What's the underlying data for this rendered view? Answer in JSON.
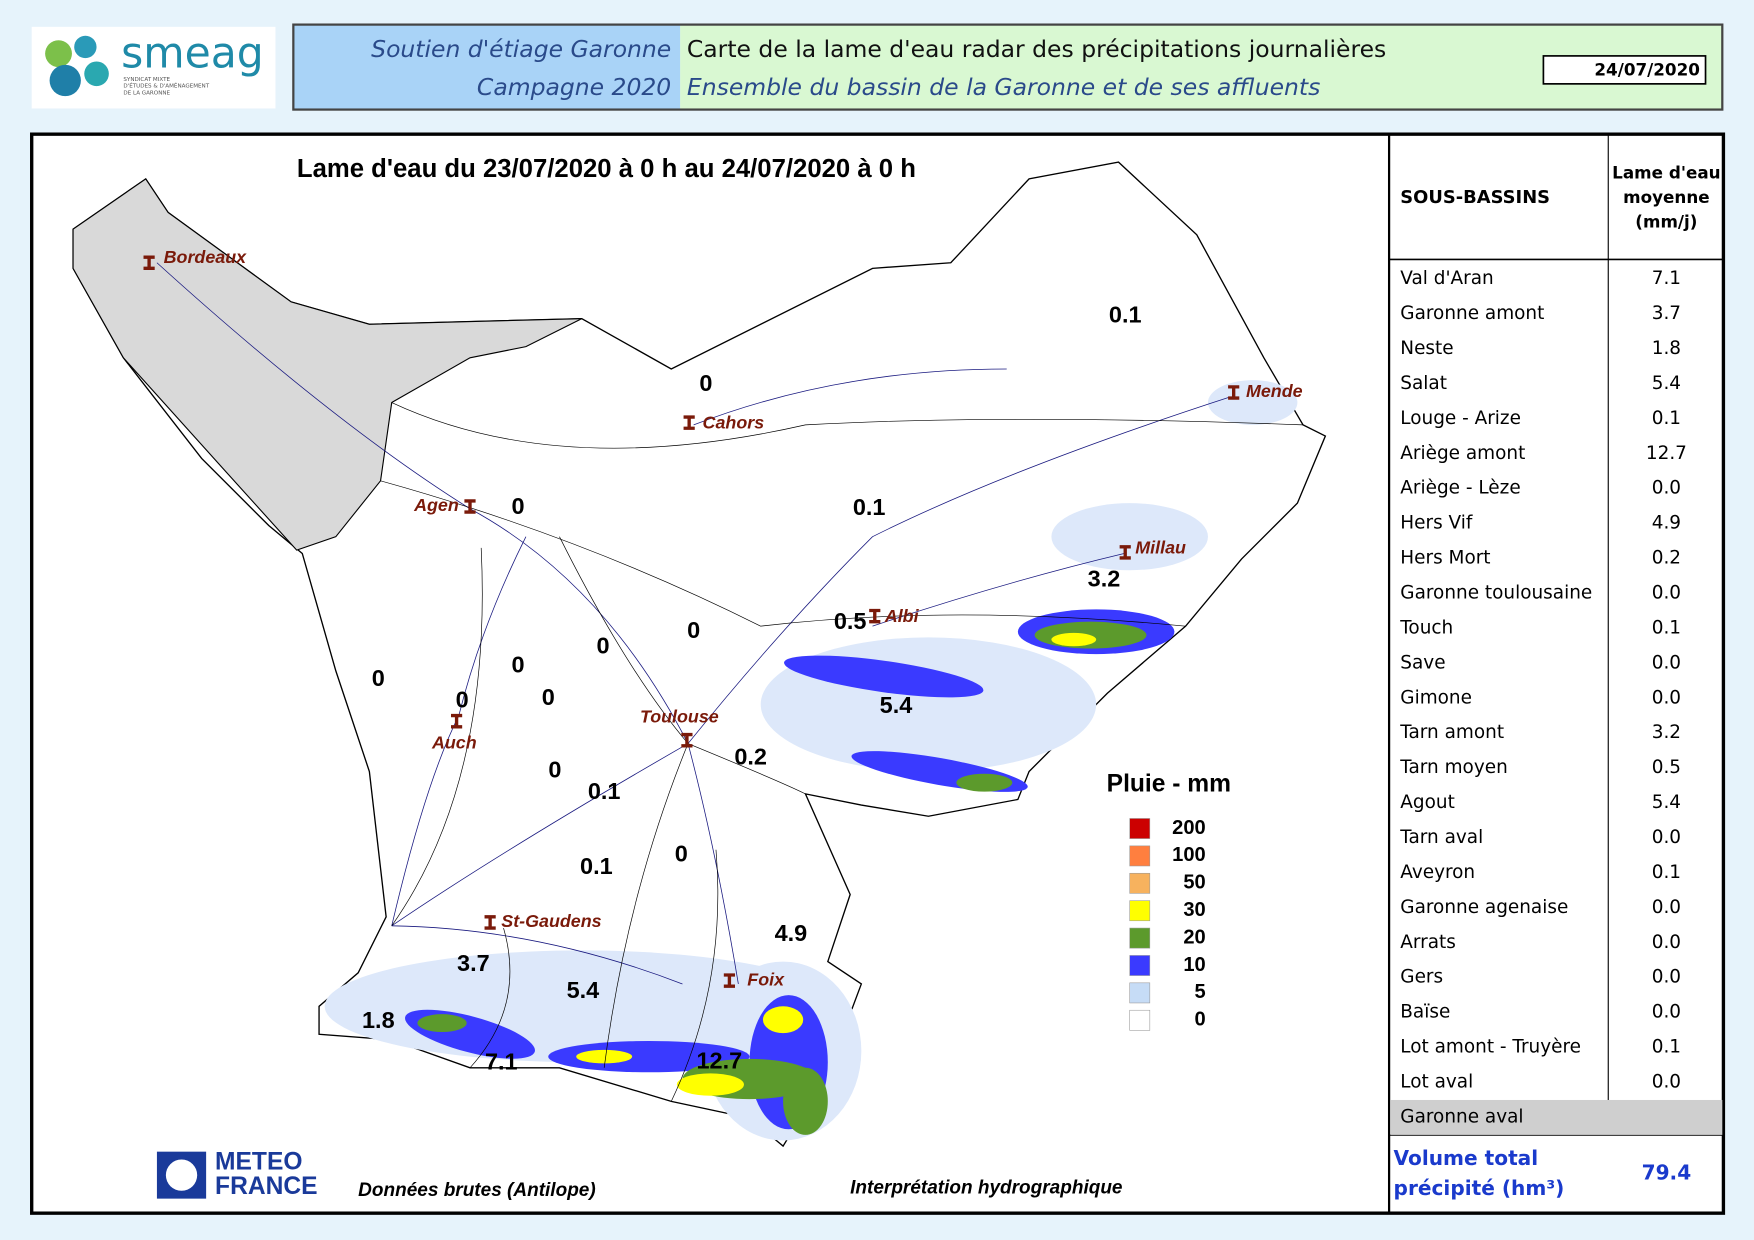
{
  "header": {
    "logo": "smeag",
    "logo_sub": [
      "SYNDICAT MIXTE",
      "D'ÉTUDES & D'AMÉNAGEMENT",
      "DE LA GARONNE"
    ],
    "left_line1": "Soutien d'étiage Garonne",
    "left_line2": "Campagne 2020",
    "right_line1": "Carte de la lame d'eau radar des précipitations journalières",
    "right_line2": "Ensemble du bassin de la Garonne et de ses affluents",
    "date": "24/07/2020"
  },
  "map": {
    "title": "Lame d'eau du 23/07/2020 à 0 h au 24/07/2020 à 0 h",
    "cities": [
      "Bordeaux",
      "Cahors",
      "Mende",
      "Agen",
      "Millau",
      "Albi",
      "Toulouse",
      "Auch",
      "St-Gaudens",
      "Foix"
    ],
    "basin_labels": [
      "0.1",
      "0",
      "0",
      "0.1",
      "3.2",
      "0.5",
      "0",
      "0",
      "0",
      "0",
      "0",
      "0",
      "5.4",
      "0.2",
      "0",
      "0.1",
      "0",
      "0.1",
      "4.9",
      "3.7",
      "5.4",
      "1.8",
      "7.1",
      "12.7"
    ],
    "legend": {
      "title": "Pluie - mm",
      "items": [
        {
          "label": "200",
          "color": "#cc0000"
        },
        {
          "label": "100",
          "color": "#ff7f3f"
        },
        {
          "label": "50",
          "color": "#f7b25e"
        },
        {
          "label": "30",
          "color": "#ffff00"
        },
        {
          "label": "20",
          "color": "#5c9a2c"
        },
        {
          "label": "10",
          "color": "#3a3aff"
        },
        {
          "label": "5",
          "color": "#c6dcf6"
        },
        {
          "label": "0",
          "color": "#ffffff"
        }
      ]
    },
    "logo_meteo": [
      "METEO",
      "FRANCE"
    ],
    "source": "Données brutes (Antilope)",
    "interpretation": "Interprétation hydrographique"
  },
  "table": {
    "col1": "SOUS-BASSINS",
    "col2": [
      "Lame d'eau",
      "moyenne",
      "(mm/j)"
    ],
    "rows": [
      [
        "Val d'Aran",
        "7.1"
      ],
      [
        "Garonne amont",
        "3.7"
      ],
      [
        "Neste",
        "1.8"
      ],
      [
        "Salat",
        "5.4"
      ],
      [
        "Louge - Arize",
        "0.1"
      ],
      [
        "Ariège amont",
        "12.7"
      ],
      [
        "Ariège - Lèze",
        "0.0"
      ],
      [
        "Hers Vif",
        "4.9"
      ],
      [
        "Hers Mort",
        "0.2"
      ],
      [
        "Garonne toulousaine",
        "0.0"
      ],
      [
        "Touch",
        "0.1"
      ],
      [
        "Save",
        "0.0"
      ],
      [
        "Gimone",
        "0.0"
      ],
      [
        "Tarn amont",
        "3.2"
      ],
      [
        "Tarn moyen",
        "0.5"
      ],
      [
        "Agout",
        "5.4"
      ],
      [
        "Tarn aval",
        "0.0"
      ],
      [
        "Aveyron",
        "0.1"
      ],
      [
        "Garonne agenaise",
        "0.0"
      ],
      [
        "Arrats",
        "0.0"
      ],
      [
        "Gers",
        "0.0"
      ],
      [
        "Baïse",
        "0.0"
      ],
      [
        "Lot amont - Truyère",
        "0.1"
      ],
      [
        "Lot aval",
        "0.0"
      ],
      [
        "Garonne aval",
        ""
      ]
    ],
    "total_label": [
      "Volume total",
      "précipité (hm³)"
    ],
    "total_value": "79.4"
  }
}
